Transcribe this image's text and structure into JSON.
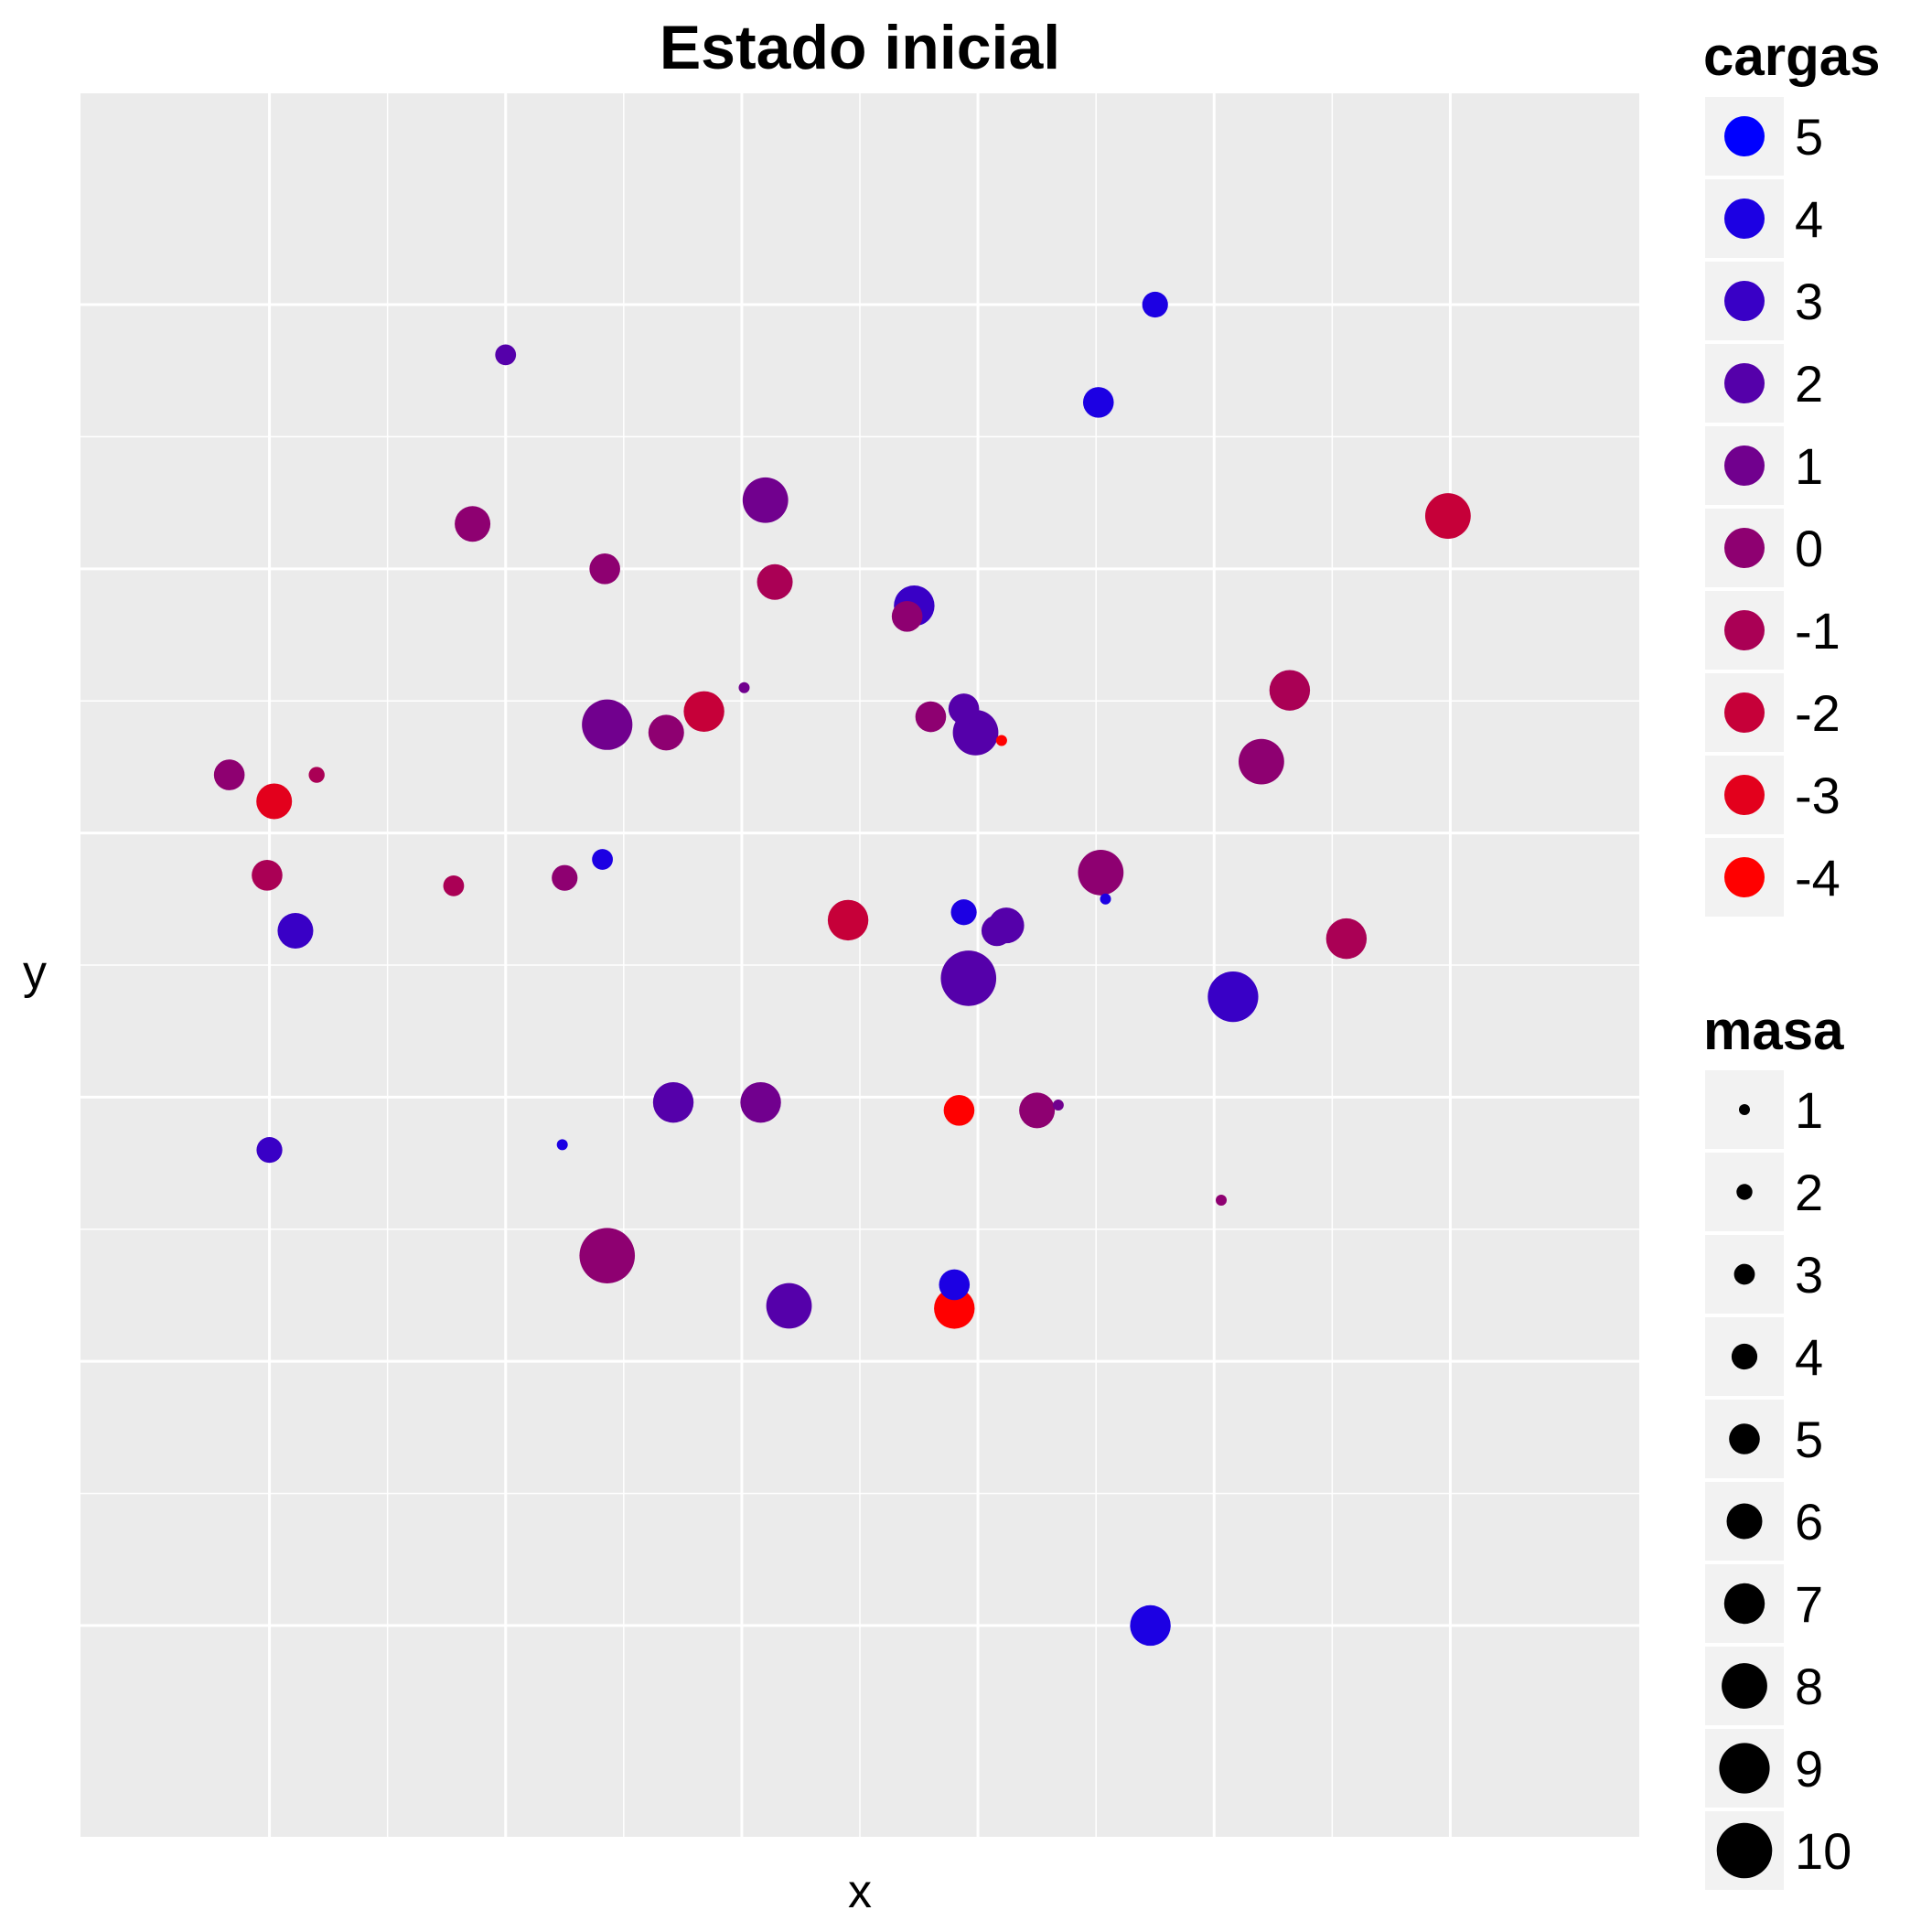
{
  "chart_data": {
    "type": "scatter",
    "title": "Estado inicial",
    "xlabel": "x",
    "ylabel": "y",
    "xlim": [
      -0.8,
      5.8
    ],
    "ylim": [
      -4.8,
      1.8
    ],
    "grid": true,
    "background": "#ebebeb",
    "legend_position": "right",
    "color_scale": {
      "low": "#ff0000",
      "high": "#0000ff",
      "min": -4,
      "max": 5
    },
    "legend_cargas": {
      "title": "cargas",
      "values": [
        5,
        4,
        3,
        2,
        1,
        0,
        -1,
        -2,
        -3,
        -4
      ]
    },
    "legend_masa": {
      "title": "masa",
      "values": [
        1,
        2,
        3,
        4,
        5,
        6,
        7,
        8,
        9,
        10
      ]
    },
    "points": [
      {
        "x": 0.0,
        "y": -2.2,
        "carga": 3,
        "masa": 4
      },
      {
        "x": 1.0,
        "y": 0.81,
        "carga": 2,
        "masa": 3
      },
      {
        "x": 0.86,
        "y": 0.17,
        "carga": 0,
        "masa": 6
      },
      {
        "x": 1.42,
        "y": 0.0,
        "carga": 0,
        "masa": 5
      },
      {
        "x": 2.1,
        "y": 0.26,
        "carga": 1,
        "masa": 8
      },
      {
        "x": 2.14,
        "y": -0.05,
        "carga": -1,
        "masa": 6
      },
      {
        "x": 2.73,
        "y": -0.14,
        "carga": 3,
        "masa": 7
      },
      {
        "x": 2.7,
        "y": -0.18,
        "carga": 0,
        "masa": 5
      },
      {
        "x": 3.75,
        "y": 1.0,
        "carga": 4,
        "masa": 4
      },
      {
        "x": 3.51,
        "y": 0.63,
        "carga": 4,
        "masa": 5
      },
      {
        "x": 4.99,
        "y": 0.2,
        "carga": -2,
        "masa": 8
      },
      {
        "x": 4.32,
        "y": -0.46,
        "carga": -1,
        "masa": 7
      },
      {
        "x": 4.2,
        "y": -0.73,
        "carga": 0,
        "masa": 8
      },
      {
        "x": 0.2,
        "y": -0.78,
        "carga": -1,
        "masa": 2
      },
      {
        "x": 1.43,
        "y": -0.59,
        "carga": 1,
        "masa": 9
      },
      {
        "x": 1.68,
        "y": -0.62,
        "carga": 0,
        "masa": 6
      },
      {
        "x": 1.84,
        "y": -0.54,
        "carga": -2,
        "masa": 7
      },
      {
        "x": 2.01,
        "y": -0.45,
        "carga": 1,
        "masa": 1
      },
      {
        "x": 2.8,
        "y": -0.56,
        "carga": 0,
        "masa": 5
      },
      {
        "x": 2.94,
        "y": -0.53,
        "carga": 2,
        "masa": 5
      },
      {
        "x": 2.99,
        "y": -0.62,
        "carga": 2,
        "masa": 8
      },
      {
        "x": 3.1,
        "y": -0.65,
        "carga": -4,
        "masa": 1
      },
      {
        "x": -0.17,
        "y": -0.78,
        "carga": 0,
        "masa": 5
      },
      {
        "x": 0.02,
        "y": -0.88,
        "carga": -3,
        "masa": 6
      },
      {
        "x": -0.01,
        "y": -1.16,
        "carga": -1,
        "masa": 5
      },
      {
        "x": 0.11,
        "y": -1.37,
        "carga": 3,
        "masa": 6
      },
      {
        "x": 0.78,
        "y": -1.2,
        "carga": -1,
        "masa": 3
      },
      {
        "x": 1.25,
        "y": -1.17,
        "carga": 0,
        "masa": 4
      },
      {
        "x": 1.41,
        "y": -1.1,
        "carga": 4,
        "masa": 3
      },
      {
        "x": 2.45,
        "y": -1.33,
        "carga": -2,
        "masa": 7
      },
      {
        "x": 2.94,
        "y": -1.3,
        "carga": 4,
        "masa": 4
      },
      {
        "x": 3.12,
        "y": -1.35,
        "carga": 2,
        "masa": 6
      },
      {
        "x": 3.08,
        "y": -1.37,
        "carga": 2,
        "masa": 5
      },
      {
        "x": 3.52,
        "y": -1.15,
        "carga": 0,
        "masa": 8
      },
      {
        "x": 3.54,
        "y": -1.25,
        "carga": 4,
        "masa": 1
      },
      {
        "x": 4.56,
        "y": -1.4,
        "carga": -1,
        "masa": 7
      },
      {
        "x": 2.96,
        "y": -1.55,
        "carga": 2,
        "masa": 10
      },
      {
        "x": 4.08,
        "y": -1.62,
        "carga": 3,
        "masa": 9
      },
      {
        "x": 1.71,
        "y": -2.02,
        "carga": 2,
        "masa": 7
      },
      {
        "x": 2.08,
        "y": -2.02,
        "carga": 1,
        "masa": 7
      },
      {
        "x": 2.92,
        "y": -2.05,
        "carga": -4,
        "masa": 5
      },
      {
        "x": 3.25,
        "y": -2.05,
        "carga": 0,
        "masa": 6
      },
      {
        "x": 3.34,
        "y": -2.03,
        "carga": 1,
        "masa": 1
      },
      {
        "x": 1.24,
        "y": -2.18,
        "carga": 4,
        "masa": 1
      },
      {
        "x": 4.03,
        "y": -2.39,
        "carga": 0,
        "masa": 1
      },
      {
        "x": 1.43,
        "y": -2.6,
        "carga": 0,
        "masa": 10
      },
      {
        "x": 2.2,
        "y": -2.79,
        "carga": 2,
        "masa": 8
      },
      {
        "x": 2.9,
        "y": -2.71,
        "carga": 4,
        "masa": 5
      },
      {
        "x": 2.9,
        "y": -2.8,
        "carga": -4,
        "masa": 7
      },
      {
        "x": 3.73,
        "y": -4.0,
        "carga": 4,
        "masa": 7
      }
    ]
  }
}
